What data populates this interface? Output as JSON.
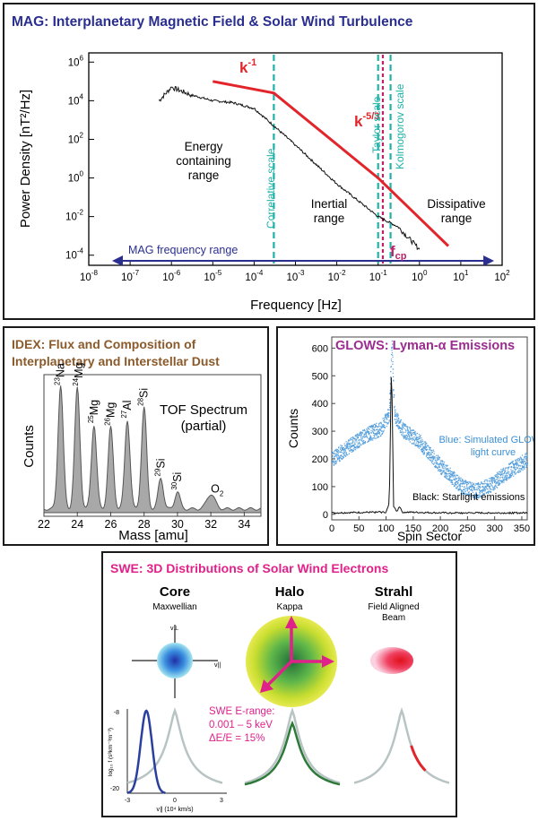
{
  "mag": {
    "title": "MAG: Interplanetary Magnetic Field & Solar Wind Turbulence",
    "ylabel": "Power Density [nT²/Hz]",
    "xlabel": "Frequency [Hz]",
    "x_ticks": [
      "10-8",
      "10-7",
      "10-6",
      "10-5",
      "10-4",
      "10-3",
      "10-2",
      "10-1",
      "100",
      "101",
      "102"
    ],
    "y_ticks": [
      "10-4",
      "10-2",
      "100",
      "102",
      "104",
      "106"
    ],
    "slope1": "k-1",
    "slope2": "k-5/3",
    "energy_range": [
      "Energy",
      "containing",
      "range"
    ],
    "inertial_range": [
      "Inertial",
      "range"
    ],
    "dissipative_range": [
      "Dissipative",
      "range"
    ],
    "correlative": "Correlative scale",
    "taylor": "Taylor scale",
    "kolmogorov": "Kolmogorov scale",
    "fcp": "fcp",
    "freq_range": "MAG frequency range",
    "colors": {
      "title": "#2a2f8f",
      "model": "#e2252b",
      "scale": "#1fb2a8",
      "range": "#2a2f8f"
    }
  },
  "idex": {
    "title_line1": "IDEX: Flux and Composition of",
    "title_line2": "Interplanetary and Interstellar Dust",
    "ylabel": "Counts",
    "xlabel": "Mass [amu]",
    "x_ticks": [
      "22",
      "24",
      "26",
      "28",
      "30",
      "32",
      "34"
    ],
    "spectrum_l1": "TOF Spectrum",
    "spectrum_l2": "(partial)",
    "peaks": [
      "23Na",
      "24Mg",
      "25Mg",
      "26Mg",
      "27Al",
      "28Si",
      "29Si",
      "30Si",
      "O2"
    ],
    "colors": {
      "title": "#8a5a2b",
      "fill": "#a8a8a8"
    }
  },
  "glows": {
    "title": "GLOWS: Lyman-α Emissions",
    "ylabel": "Counts",
    "xlabel": "Spin Sector",
    "x_ticks": [
      "0",
      "50",
      "100",
      "150",
      "200",
      "250",
      "300",
      "350"
    ],
    "y_ticks": [
      "0",
      "100",
      "200",
      "300",
      "400",
      "500",
      "600"
    ],
    "blue_l1": "Blue: Simulated GLOWS",
    "blue_l2": "light curve",
    "black_l1": "Black: Starlight emissions",
    "colors": {
      "title": "#9b2c8f",
      "blue": "#3a8fd6"
    }
  },
  "chart_data": [
    {
      "type": "line",
      "title": "MAG: Interplanetary Magnetic Field & Solar Wind Turbulence",
      "xlabel": "Frequency [Hz]",
      "ylabel": "Power Density [nT^2/Hz]",
      "x_scale": "log",
      "y_scale": "log",
      "xlim": [
        1e-08,
        100
      ],
      "ylim": [
        3e-05,
        3000000.0
      ],
      "series": [
        {
          "x": [
            1e-05,
            0.0003,
            0.1,
            5
          ],
          "y": [
            100000.0,
            25000.0,
            1,
            0.0003
          ]
        },
        {
          "x": [
            5e-07,
            1e-06,
            3e-06,
            1e-05,
            3e-05,
            0.0001,
            0.0003,
            0.001,
            0.01,
            0.1,
            0.3,
            1
          ],
          "y": [
            10000.0,
            50000.0,
            20000.0,
            10000.0,
            8000.0,
            4000.0,
            500,
            50,
            0.5,
            0.01,
            0.003,
            0.0002
          ]
        }
      ],
      "vertical_lines": [
        {
          "x": 0.0003,
          "label": "Correlative scale"
        },
        {
          "x": 0.1,
          "label": "Taylor scale"
        },
        {
          "x": 0.2,
          "label": "Kolmogorov scale"
        },
        {
          "x": 0.13,
          "label": "fcp"
        }
      ],
      "range_arrow": {
        "from": 1e-08,
        "to": 64,
        "label": "MAG frequency range"
      }
    },
    {
      "type": "area",
      "title": "IDEX: Flux and Composition of Interplanetary and Interstellar Dust",
      "xlabel": "Mass [amu]",
      "ylabel": "Counts",
      "xlim": [
        22,
        35
      ],
      "peaks": [
        {
          "label": "23Na",
          "x": 23.0,
          "y": 1.0
        },
        {
          "label": "24Mg",
          "x": 24.0,
          "y": 0.98
        },
        {
          "label": "25Mg",
          "x": 25.0,
          "y": 0.68
        },
        {
          "label": "26Mg",
          "x": 26.0,
          "y": 0.66
        },
        {
          "label": "27Al",
          "x": 27.0,
          "y": 0.72
        },
        {
          "label": "28Si",
          "x": 28.0,
          "y": 0.82
        },
        {
          "label": "29Si",
          "x": 29.0,
          "y": 0.25
        },
        {
          "label": "30Si",
          "x": 30.0,
          "y": 0.14
        },
        {
          "label": "O2",
          "x": 32.0,
          "y": 0.12
        }
      ]
    },
    {
      "type": "scatter",
      "title": "GLOWS: Lyman-α Emissions",
      "xlabel": "Spin Sector",
      "ylabel": "Counts",
      "xlim": [
        0,
        360
      ],
      "ylim": [
        -20,
        640
      ],
      "series": [
        {
          "name": "Blue: Simulated GLOWS light curve",
          "x": [
            0,
            30,
            60,
            90,
            105,
            110,
            115,
            130,
            160,
            200,
            240,
            265,
            290,
            320,
            360
          ],
          "y": [
            200,
            245,
            285,
            310,
            360,
            620,
            360,
            305,
            265,
            175,
            100,
            85,
            105,
            150,
            200
          ]
        },
        {
          "name": "Black: Starlight emissions",
          "x": [
            0,
            100,
            106,
            110,
            114,
            120,
            125,
            130,
            200,
            360
          ],
          "y": [
            5,
            8,
            40,
            560,
            30,
            10,
            30,
            8,
            5,
            5
          ]
        }
      ]
    }
  ],
  "swe": {
    "title": "SWE: 3D Distributions of Solar Wind Electrons",
    "core": "Core",
    "core_sub": "Maxwellian",
    "halo": "Halo",
    "halo_sub": "Kappa",
    "strahl": "Strahl",
    "strahl_sub1": "Field Aligned",
    "strahl_sub2": "Beam",
    "v_perp": "v⊥",
    "v_par": "v||",
    "erange_l1": "SWE E-range:",
    "erange_l2": "0.001 – 5 keV",
    "erange_l3": "ΔE/E = 15%",
    "ylabel": "log₁₀ f (s³km⁻³m⁻³)",
    "y_top": "-8",
    "y_bot": "-20",
    "xlabel": "v∥ (10⁴ km/s)",
    "x_left": "-3",
    "x_mid": "0",
    "x_right": "3",
    "colors": {
      "title": "#e0218a",
      "core": "#2a3f9e",
      "halo": "#2d7a3a",
      "strahl": "#e2252b",
      "gray": "#b8c4c4",
      "arrow": "#e0218a"
    }
  }
}
